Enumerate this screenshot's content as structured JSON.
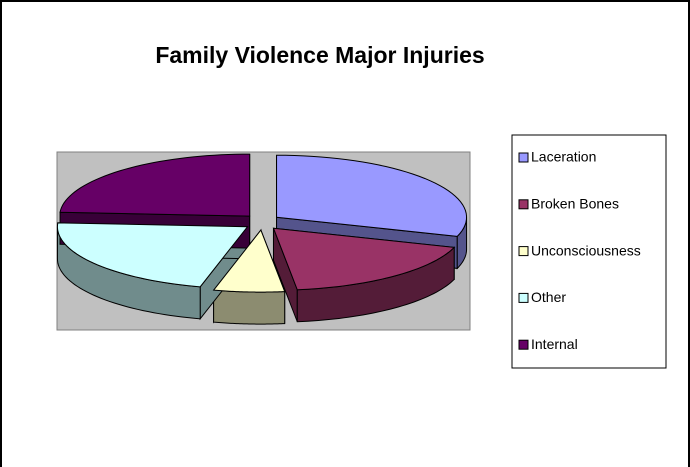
{
  "chart_data": {
    "type": "pie3d",
    "title": "Family Violence Major Injuries",
    "categories": [
      "Laceration",
      "Broken Bones",
      "Unconsciousness",
      "Other",
      "Internal"
    ],
    "values": [
      30,
      18,
      6,
      22,
      24
    ],
    "colors": [
      "#9999ff",
      "#993366",
      "#ffffcc",
      "#ccffff",
      "#660066"
    ],
    "legend": "right"
  }
}
